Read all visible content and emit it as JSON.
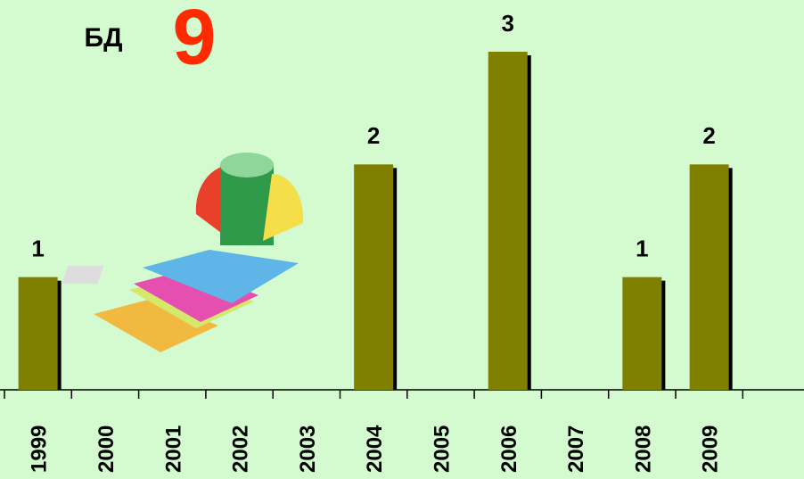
{
  "chart_data": {
    "type": "bar",
    "title": "БД",
    "badge": "9",
    "categories": [
      "1999",
      "2000",
      "2001",
      "2002",
      "2003",
      "2004",
      "2005",
      "2006",
      "2007",
      "2008",
      "2009"
    ],
    "values": [
      1,
      0,
      0,
      0,
      0,
      2,
      0,
      3,
      0,
      1,
      2
    ],
    "color": "#808000",
    "ylim": [
      0,
      3
    ]
  }
}
